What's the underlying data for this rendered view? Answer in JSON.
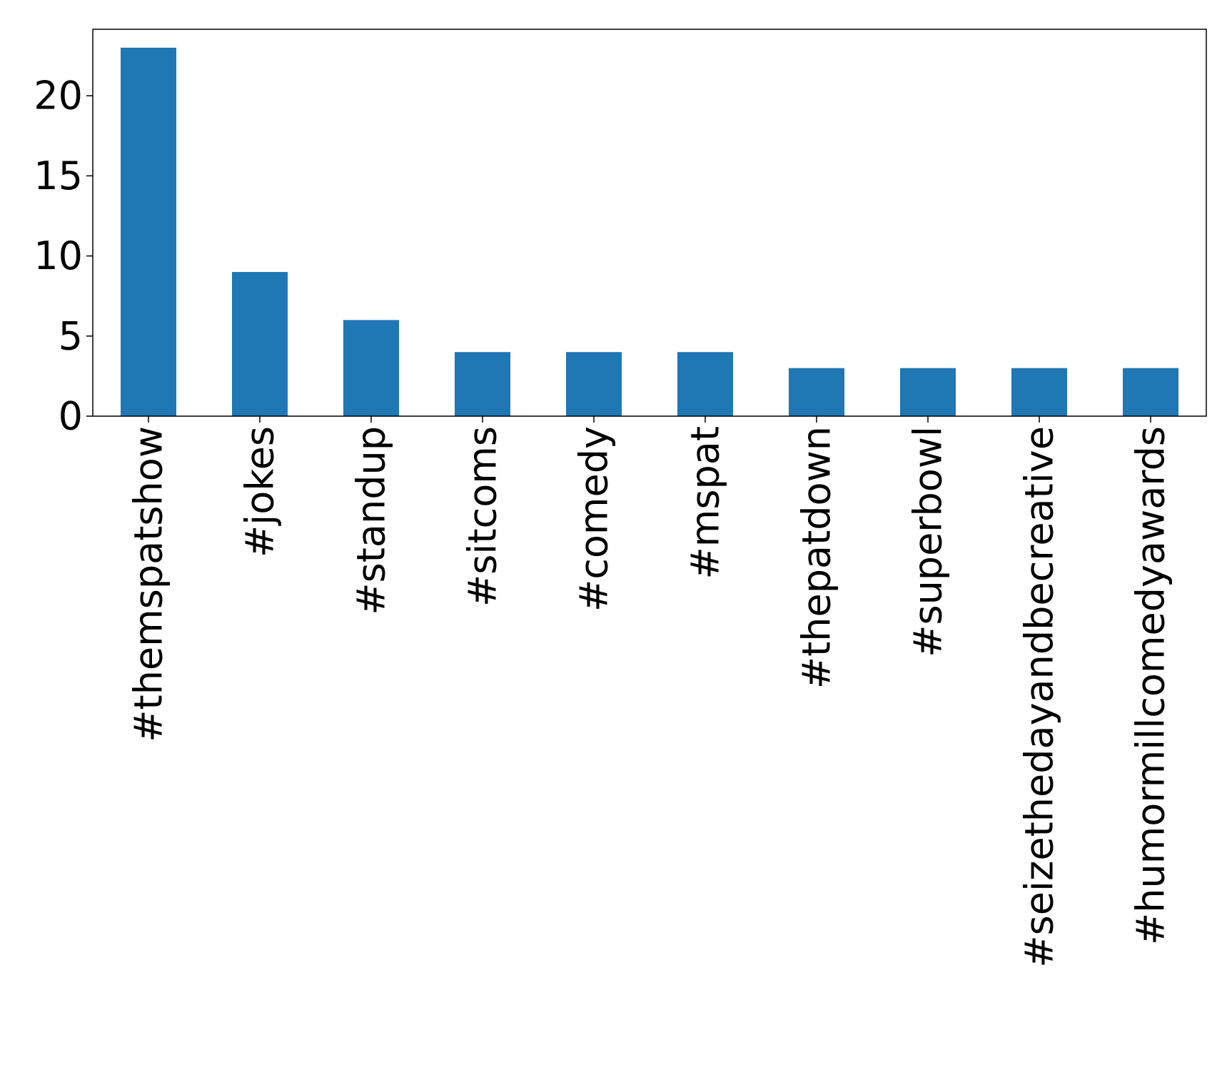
{
  "chart_data": {
    "type": "bar",
    "title": "",
    "xlabel": "",
    "ylabel": "",
    "categories": [
      "#themspatshow",
      "#jokes",
      "#standup",
      "#sitcoms",
      "#comedy",
      "#mspat",
      "#thepatdown",
      "#superbowl",
      "#seizethedayandbecreative",
      "#humormillcomedyawards"
    ],
    "values": [
      23,
      9,
      6,
      4,
      4,
      4,
      3,
      3,
      3,
      3
    ],
    "ylim": [
      0,
      24.15
    ],
    "yticks": [
      0,
      5,
      10,
      15,
      20
    ],
    "bar_color": "#1f77b4",
    "grid": false,
    "legend": "none"
  }
}
